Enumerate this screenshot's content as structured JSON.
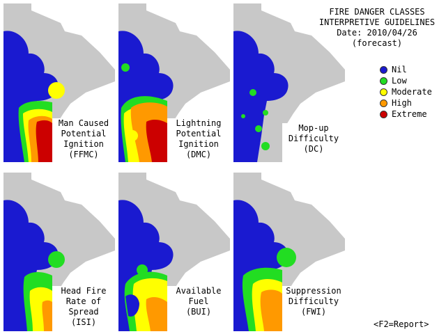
{
  "header": {
    "title": "FIRE DANGER CLASSES",
    "subtitle": "INTERPRETIVE GUIDELINES",
    "date": "Date: 2010/04/26",
    "note": "(forecast)"
  },
  "legend": [
    {
      "label": "Nil",
      "color": "#1a1ad0"
    },
    {
      "label": "Low",
      "color": "#22dd22"
    },
    {
      "label": "Moderate",
      "color": "#ffff00"
    },
    {
      "label": "High",
      "color": "#ff9900"
    },
    {
      "label": "Extreme",
      "color": "#cc0000"
    }
  ],
  "colors": {
    "land": "#c8c8c8",
    "nil": "#1a1ad0",
    "low": "#22dd22",
    "moderate": "#ffff00",
    "high": "#ff9900",
    "extreme": "#cc0000"
  },
  "panels": [
    {
      "label": "Man Caused\nPotential\nIgnition\n(FFMC)",
      "pattern": "ffmc"
    },
    {
      "label": "Lightning\nPotential\nIgnition\n(DMC)",
      "pattern": "dmc"
    },
    {
      "label": "Mop-up\nDifficulty\n(DC)",
      "pattern": "dc"
    },
    {
      "label": "Head Fire\nRate of\nSpread\n(ISI)",
      "pattern": "isi"
    },
    {
      "label": "Available\nFuel\n(BUI)",
      "pattern": "bui"
    },
    {
      "label": "Suppression\nDifficulty\n(FWI)",
      "pattern": "fwi"
    }
  ],
  "footer": "<F2=Report>"
}
